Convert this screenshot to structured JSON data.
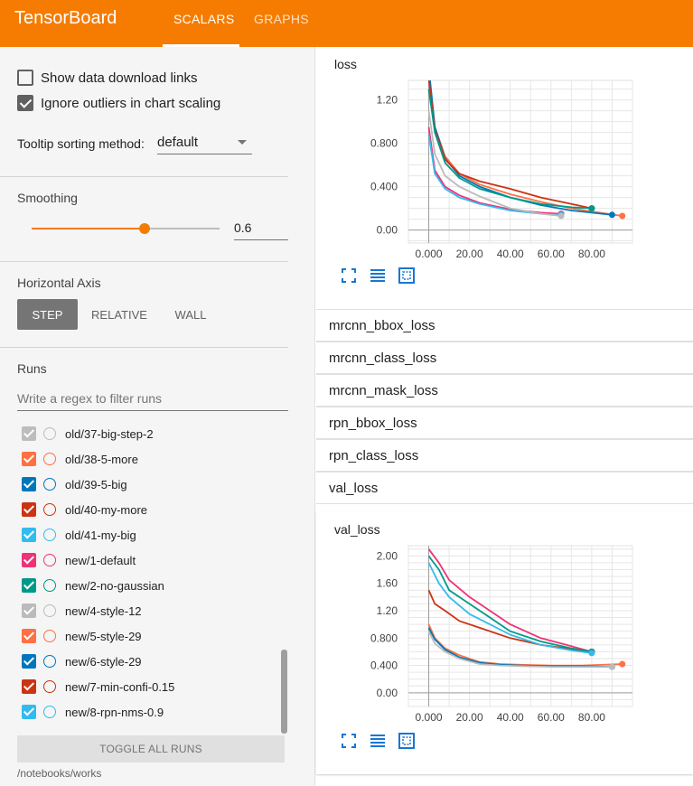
{
  "app": {
    "title": "TensorBoard"
  },
  "tabs": [
    {
      "label": "SCALARS",
      "active": true
    },
    {
      "label": "GRAPHS",
      "active": false
    }
  ],
  "sidebar": {
    "show_download": {
      "label": "Show data download links",
      "checked": false
    },
    "ignore_outliers": {
      "label": "Ignore outliers in chart scaling",
      "checked": true
    },
    "tooltip_sort": {
      "label": "Tooltip sorting method:",
      "value": "default"
    },
    "smoothing": {
      "title": "Smoothing",
      "value": "0.6",
      "fraction": 0.6
    },
    "horizontal_axis": {
      "title": "Horizontal Axis",
      "options": [
        "STEP",
        "RELATIVE",
        "WALL"
      ],
      "selected": "STEP"
    },
    "runs": {
      "title": "Runs",
      "filter_placeholder": "Write a regex to filter runs",
      "items": [
        {
          "name": "old/37-big-step-2",
          "color": "#bdbdbd"
        },
        {
          "name": "old/38-5-more",
          "color": "#ff7043"
        },
        {
          "name": "old/39-5-big",
          "color": "#0077bb"
        },
        {
          "name": "old/40-my-more",
          "color": "#cc3311"
        },
        {
          "name": "old/41-my-big",
          "color": "#33bbee"
        },
        {
          "name": "new/1-default",
          "color": "#ee3377"
        },
        {
          "name": "new/2-no-gaussian",
          "color": "#009988"
        },
        {
          "name": "new/4-style-12",
          "color": "#bbbbbb"
        },
        {
          "name": "new/5-style-29",
          "color": "#ff7043"
        },
        {
          "name": "new/6-style-29",
          "color": "#0077bb"
        },
        {
          "name": "new/7-min-confi-0.15",
          "color": "#cc3311"
        },
        {
          "name": "new/8-rpn-nms-0.9",
          "color": "#33bbee"
        }
      ],
      "toggle_label": "TOGGLE ALL RUNS",
      "logdir": "/notebooks/works"
    }
  },
  "main": {
    "loss_card": {
      "title": "loss"
    },
    "categories": [
      "mrcnn_bbox_loss",
      "mrcnn_class_loss",
      "mrcnn_mask_loss",
      "rpn_bbox_loss",
      "rpn_class_loss",
      "val_loss"
    ],
    "val_card": {
      "title": "val_loss"
    }
  },
  "chart_data": [
    {
      "type": "line",
      "title": "loss",
      "xlim": [
        -10,
        100
      ],
      "ylim": [
        -0.12,
        1.38
      ],
      "x_ticks": [
        "0.000",
        "20.00",
        "40.00",
        "60.00",
        "80.00"
      ],
      "y_ticks": [
        "0.00",
        "0.400",
        "0.800",
        "1.20"
      ],
      "series": [
        {
          "color": "#ff7043",
          "x": [
            0,
            3,
            8,
            15,
            25,
            40,
            55,
            70,
            80,
            95
          ],
          "y": [
            1.4,
            0.95,
            0.68,
            0.52,
            0.42,
            0.33,
            0.26,
            0.2,
            0.17,
            0.13
          ]
        },
        {
          "color": "#0077bb",
          "x": [
            0,
            3,
            8,
            15,
            25,
            40,
            55,
            70,
            80,
            90
          ],
          "y": [
            1.5,
            0.95,
            0.66,
            0.5,
            0.4,
            0.3,
            0.23,
            0.18,
            0.16,
            0.14
          ]
        },
        {
          "color": "#cc3311",
          "x": [
            0,
            3,
            8,
            15,
            25,
            40,
            55,
            70,
            80
          ],
          "y": [
            1.4,
            0.92,
            0.65,
            0.52,
            0.45,
            0.38,
            0.3,
            0.24,
            0.2
          ]
        },
        {
          "color": "#ee3377",
          "x": [
            0,
            3,
            8,
            15,
            25,
            40,
            55,
            65
          ],
          "y": [
            0.95,
            0.55,
            0.4,
            0.32,
            0.25,
            0.19,
            0.16,
            0.15
          ]
        },
        {
          "color": "#009988",
          "x": [
            0,
            3,
            8,
            15,
            25,
            40,
            55,
            70,
            80
          ],
          "y": [
            1.3,
            0.9,
            0.62,
            0.48,
            0.38,
            0.3,
            0.24,
            0.21,
            0.2
          ]
        },
        {
          "color": "#33bbee",
          "x": [
            0,
            3,
            8,
            15,
            25,
            40,
            55,
            65
          ],
          "y": [
            0.88,
            0.52,
            0.38,
            0.3,
            0.24,
            0.18,
            0.15,
            0.14
          ]
        },
        {
          "color": "#bbbbbb",
          "x": [
            0,
            3,
            8,
            15,
            25,
            40,
            55,
            65
          ],
          "y": [
            1.1,
            0.7,
            0.5,
            0.4,
            0.31,
            0.2,
            0.15,
            0.13
          ]
        }
      ]
    },
    {
      "type": "line",
      "title": "val_loss",
      "xlim": [
        -10,
        100
      ],
      "ylim": [
        -0.2,
        2.15
      ],
      "x_ticks": [
        "0.000",
        "20.00",
        "40.00",
        "60.00",
        "80.00"
      ],
      "y_ticks": [
        "0.00",
        "0.400",
        "0.800",
        "1.20",
        "1.60",
        "2.00"
      ],
      "series": [
        {
          "color": "#ff7043",
          "x": [
            0,
            3,
            8,
            15,
            25,
            35,
            45,
            60,
            75,
            95
          ],
          "y": [
            1.0,
            0.8,
            0.65,
            0.55,
            0.45,
            0.42,
            0.41,
            0.4,
            0.4,
            0.42
          ]
        },
        {
          "color": "#0077bb",
          "x": [
            0,
            3,
            8,
            15,
            25,
            35,
            45,
            60,
            75,
            90
          ],
          "y": [
            0.95,
            0.78,
            0.63,
            0.52,
            0.44,
            0.41,
            0.4,
            0.39,
            0.39,
            0.38
          ]
        },
        {
          "color": "#cc3311",
          "x": [
            0,
            3,
            8,
            15,
            25,
            40,
            55,
            70,
            80
          ],
          "y": [
            1.5,
            1.3,
            1.2,
            1.05,
            0.95,
            0.8,
            0.7,
            0.64,
            0.6
          ]
        },
        {
          "color": "#ee3377",
          "x": [
            0,
            5,
            10,
            20,
            30,
            40,
            55,
            70,
            80
          ],
          "y": [
            2.1,
            1.9,
            1.65,
            1.4,
            1.2,
            1.0,
            0.8,
            0.68,
            0.6
          ]
        },
        {
          "color": "#009988",
          "x": [
            0,
            5,
            10,
            20,
            30,
            40,
            55,
            70,
            80
          ],
          "y": [
            2.0,
            1.8,
            1.5,
            1.3,
            1.1,
            0.9,
            0.75,
            0.65,
            0.6
          ]
        },
        {
          "color": "#33bbee",
          "x": [
            0,
            5,
            10,
            20,
            30,
            40,
            55,
            70,
            80
          ],
          "y": [
            1.9,
            1.6,
            1.4,
            1.15,
            1.0,
            0.85,
            0.7,
            0.62,
            0.58
          ]
        },
        {
          "color": "#bbbbbb",
          "x": [
            0,
            3,
            8,
            15,
            25,
            35,
            45,
            60,
            75,
            90
          ],
          "y": [
            0.9,
            0.72,
            0.6,
            0.5,
            0.42,
            0.4,
            0.39,
            0.38,
            0.38,
            0.38
          ]
        }
      ]
    }
  ]
}
